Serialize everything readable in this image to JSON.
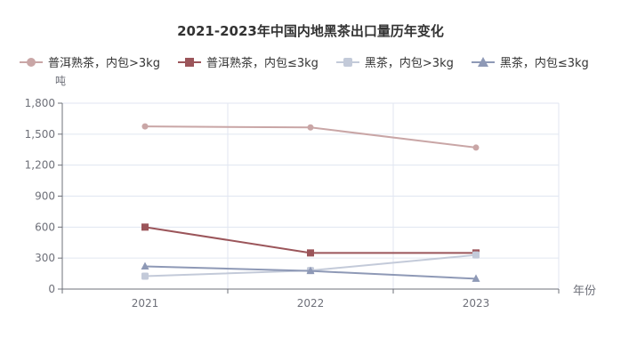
{
  "chart_data": {
    "type": "line",
    "title": "2021-2023年中国内地黑茶出口量历年变化",
    "xlabel": "年份",
    "ylabel": "吨",
    "categories": [
      "2021",
      "2022",
      "2023"
    ],
    "ylim": [
      0,
      1800
    ],
    "yticks": [
      "0",
      "300",
      "600",
      "900",
      "1,200",
      "1,500",
      "1,800"
    ],
    "ytick_values": [
      0,
      300,
      600,
      900,
      1200,
      1500,
      1800
    ],
    "legend_position": "top",
    "grid": true,
    "series": [
      {
        "name": "普洱熟茶，内包>3kg",
        "values": [
          1575,
          1565,
          1370
        ],
        "color": "#c9a6a6",
        "marker": "circle"
      },
      {
        "name": "普洱熟茶，内包≤3kg",
        "values": [
          600,
          350,
          350
        ],
        "color": "#9b555a",
        "marker": "rect"
      },
      {
        "name": "黑茶，内包>3kg",
        "values": [
          125,
          180,
          330
        ],
        "color": "#c3cad9",
        "marker": "roundRect"
      },
      {
        "name": "黑茶，内包≤3kg",
        "values": [
          220,
          175,
          100
        ],
        "color": "#8e99b6",
        "marker": "triangle"
      }
    ]
  }
}
